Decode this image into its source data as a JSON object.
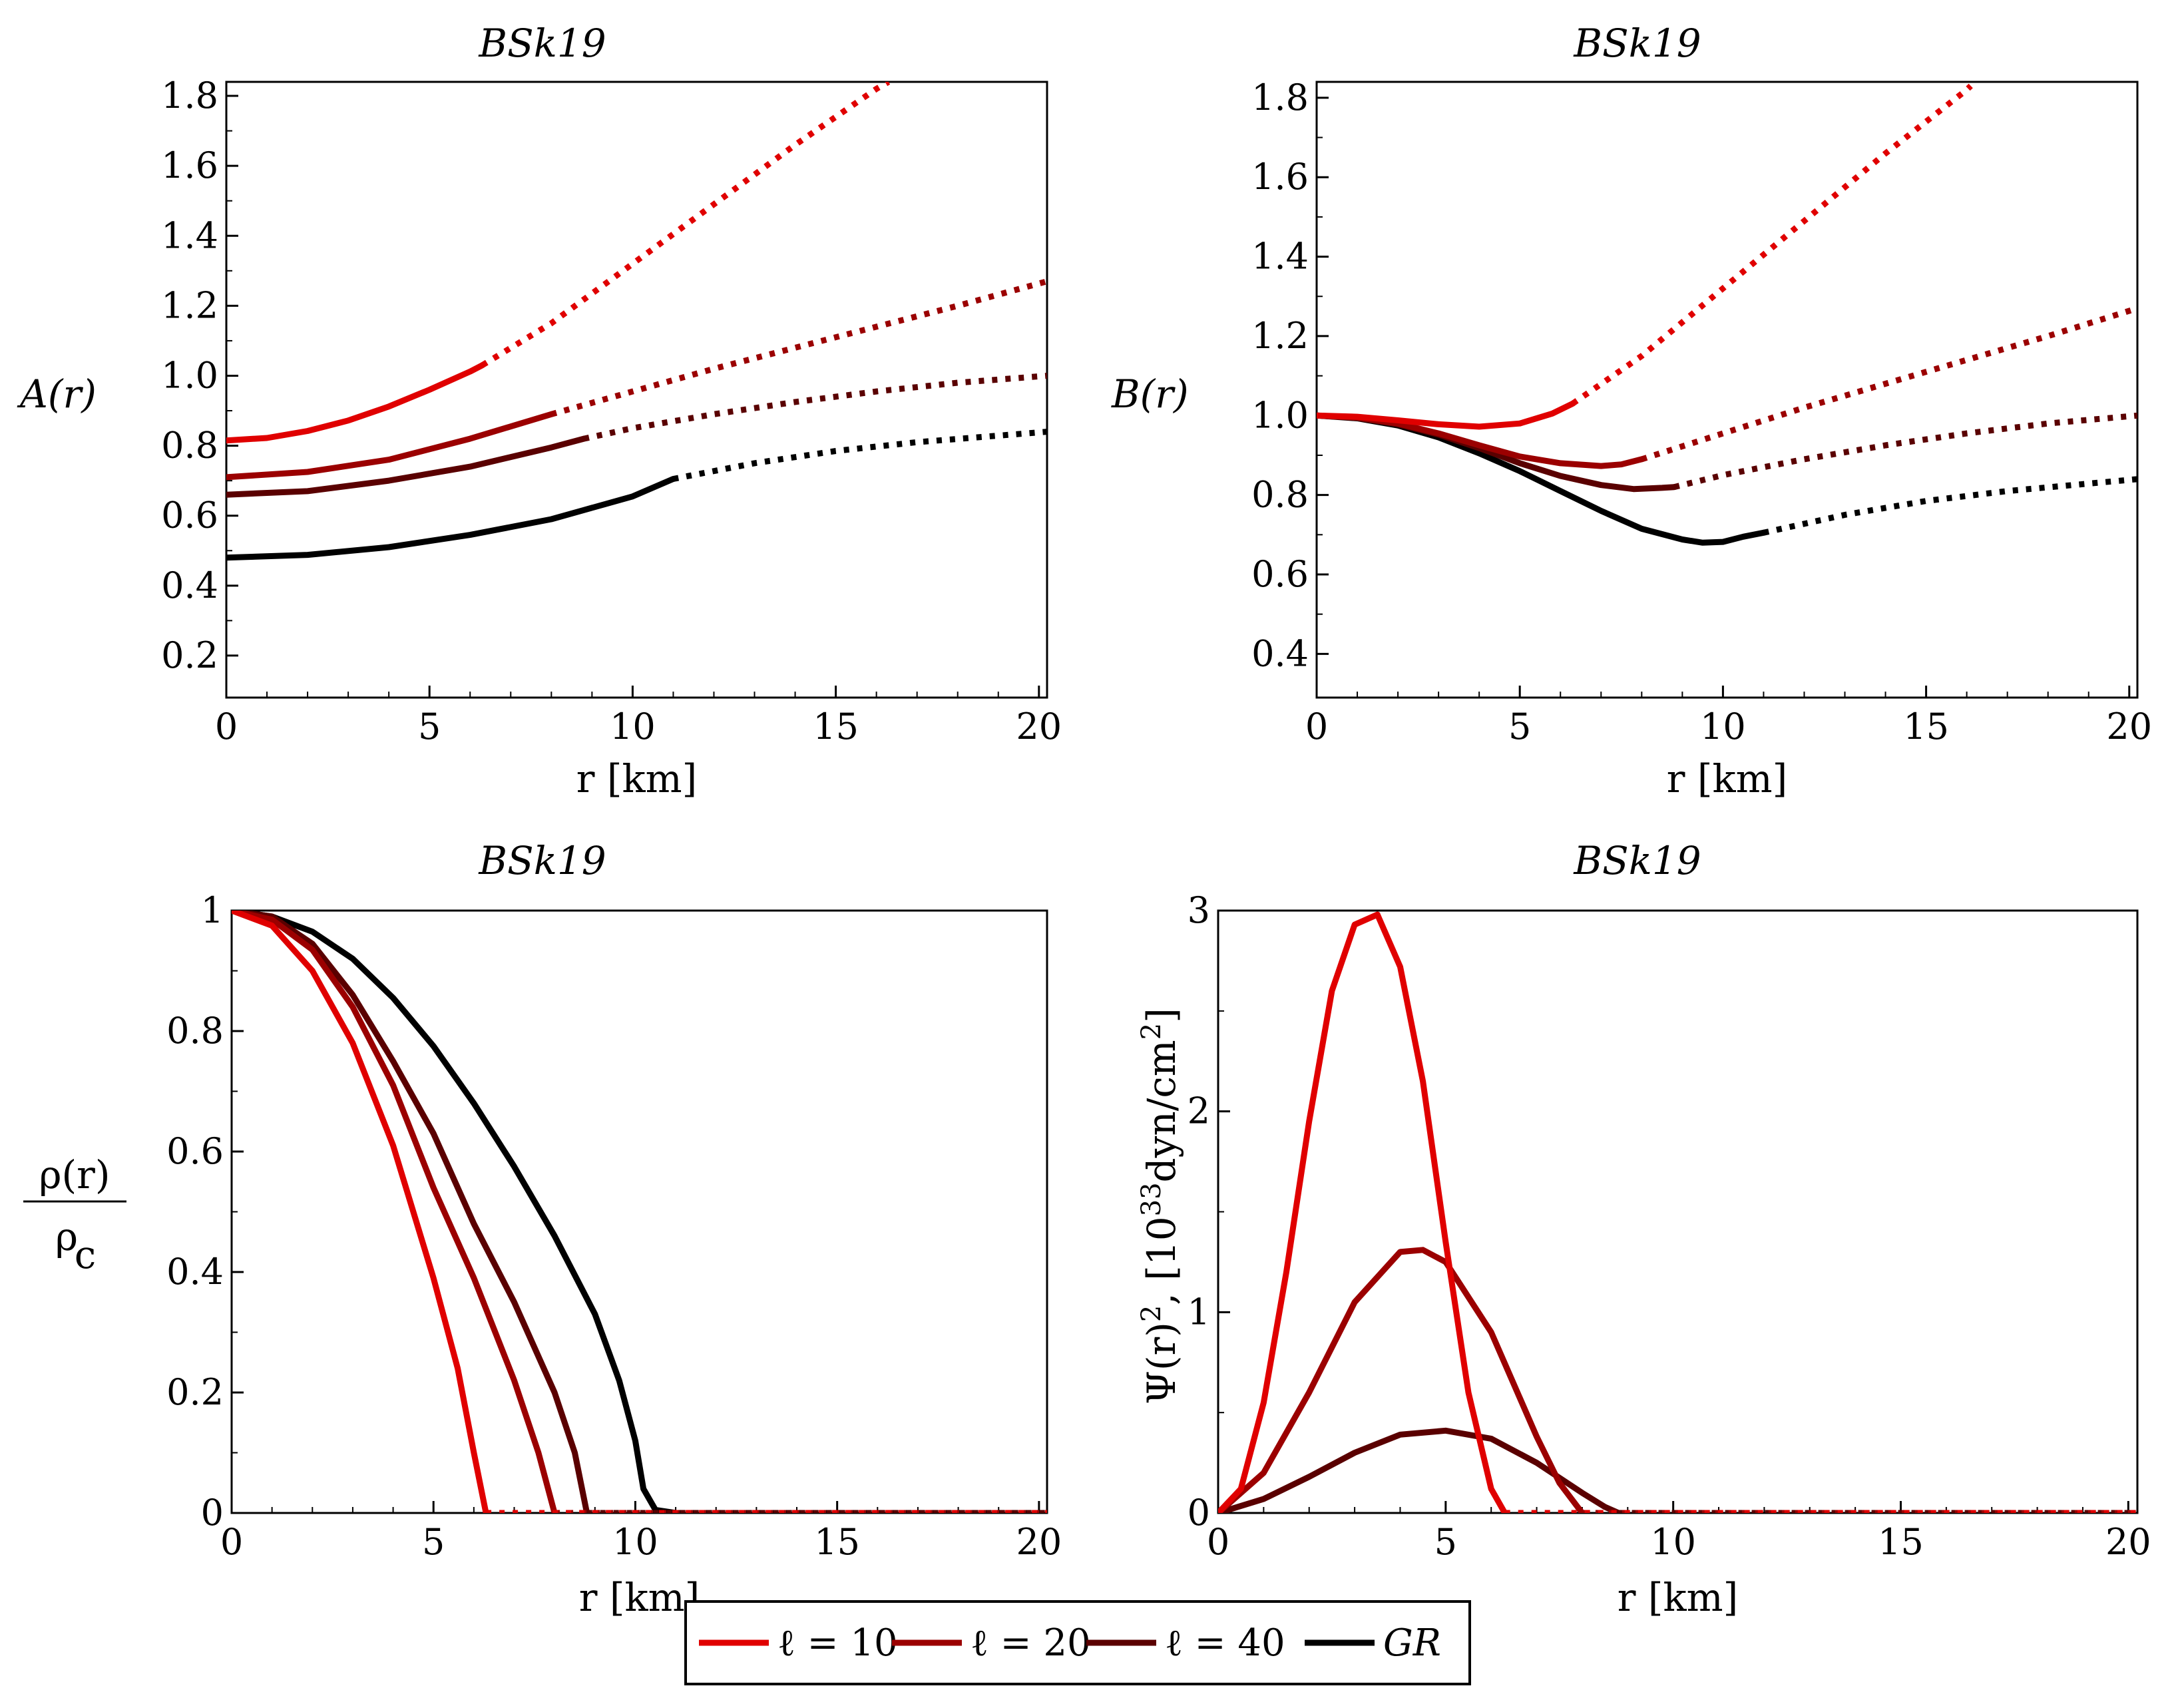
{
  "legend": [
    {
      "label": "ℓ = 10",
      "color": "#e00000"
    },
    {
      "label": "ℓ = 20",
      "color": "#9b0000"
    },
    {
      "label": "ℓ = 40",
      "color": "#5a0000"
    },
    {
      "label": "GR",
      "color": "#000000"
    }
  ],
  "chart_data": [
    {
      "type": "line",
      "title": "BSk19",
      "xlabel": "r [km]",
      "ylabel": "A(r)",
      "xlim": [
        0,
        20.2
      ],
      "ylim": [
        0.08,
        1.84
      ],
      "xticks": [
        0,
        5,
        10,
        15,
        20
      ],
      "yticks": [
        0.2,
        0.4,
        0.6,
        0.8,
        1.0,
        1.2,
        1.4,
        1.6,
        1.8
      ],
      "ytick_labels": [
        "0.2",
        "0.4",
        "0.6",
        "0.8",
        "1.0",
        "1.2",
        "1.4",
        "1.6",
        "1.8"
      ],
      "series": [
        {
          "name": "ℓ = 10",
          "solid": {
            "x": [
              0,
              1,
              2,
              3,
              4,
              5,
              6,
              6.3
            ],
            "y": [
              0.815,
              0.822,
              0.842,
              0.872,
              0.912,
              0.96,
              1.012,
              1.03
            ]
          },
          "dotted": {
            "x": [
              6.3,
              8,
              10,
              12,
              14,
              16,
              16.3
            ],
            "y": [
              1.03,
              1.15,
              1.32,
              1.49,
              1.66,
              1.82,
              1.84
            ]
          }
        },
        {
          "name": "ℓ = 20",
          "solid": {
            "x": [
              0,
              2,
              4,
              6,
              8
            ],
            "y": [
              0.71,
              0.725,
              0.76,
              0.82,
              0.89
            ]
          },
          "dotted": {
            "x": [
              8,
              10,
              12,
              14,
              16,
              18,
              20.2
            ],
            "y": [
              0.89,
              0.955,
              1.02,
              1.08,
              1.14,
              1.2,
              1.27
            ]
          }
        },
        {
          "name": "ℓ = 40",
          "solid": {
            "x": [
              0,
              2,
              4,
              6,
              8,
              8.8
            ],
            "y": [
              0.66,
              0.67,
              0.7,
              0.74,
              0.795,
              0.82
            ]
          },
          "dotted": {
            "x": [
              8.8,
              10,
              12,
              14,
              16,
              18,
              20.2
            ],
            "y": [
              0.82,
              0.85,
              0.89,
              0.925,
              0.955,
              0.98,
              1.0
            ]
          }
        },
        {
          "name": "GR",
          "solid": {
            "x": [
              0,
              2,
              4,
              6,
              8,
              10,
              11
            ],
            "y": [
              0.48,
              0.488,
              0.51,
              0.545,
              0.59,
              0.655,
              0.705
            ]
          },
          "dotted": {
            "x": [
              11,
              13,
              15,
              17,
              20.2
            ],
            "y": [
              0.705,
              0.75,
              0.785,
              0.81,
              0.84
            ]
          }
        }
      ]
    },
    {
      "type": "line",
      "title": "BSk19",
      "xlabel": "r [km]",
      "ylabel": "B(r)",
      "xlim": [
        0,
        20.2
      ],
      "ylim": [
        0.29,
        1.84
      ],
      "xticks": [
        0,
        5,
        10,
        15,
        20
      ],
      "yticks": [
        0.4,
        0.6,
        0.8,
        1.0,
        1.2,
        1.4,
        1.6,
        1.8
      ],
      "ytick_labels": [
        "0.4",
        "0.6",
        "0.8",
        "1.0",
        "1.2",
        "1.4",
        "1.6",
        "1.8"
      ],
      "series": [
        {
          "name": "ℓ = 10",
          "solid": {
            "x": [
              0,
              1,
              2,
              3,
              4,
              5,
              5.8,
              6.3
            ],
            "y": [
              1.0,
              0.997,
              0.988,
              0.978,
              0.972,
              0.98,
              1.005,
              1.03
            ]
          },
          "dotted": {
            "x": [
              6.3,
              8,
              10,
              12,
              14,
              16,
              16.1
            ],
            "y": [
              1.03,
              1.15,
              1.32,
              1.49,
              1.66,
              1.82,
              1.83
            ]
          }
        },
        {
          "name": "ℓ = 20",
          "solid": {
            "x": [
              0,
              1,
              2,
              3,
              4,
              5,
              6,
              7,
              7.5,
              8
            ],
            "y": [
              1.0,
              0.995,
              0.98,
              0.955,
              0.925,
              0.897,
              0.88,
              0.873,
              0.877,
              0.89
            ]
          },
          "dotted": {
            "x": [
              8,
              10,
              12,
              14,
              16,
              18,
              20.2
            ],
            "y": [
              0.89,
              0.955,
              1.02,
              1.08,
              1.14,
              1.2,
              1.27
            ]
          }
        },
        {
          "name": "ℓ = 40",
          "solid": {
            "x": [
              0,
              1,
              2,
              3,
              4,
              5,
              6,
              7,
              7.8,
              8.5,
              8.8
            ],
            "y": [
              1.0,
              0.994,
              0.978,
              0.952,
              0.918,
              0.88,
              0.848,
              0.825,
              0.815,
              0.818,
              0.82
            ]
          },
          "dotted": {
            "x": [
              8.8,
              10,
              12,
              14,
              16,
              18,
              20.2
            ],
            "y": [
              0.82,
              0.85,
              0.89,
              0.925,
              0.955,
              0.98,
              1.0
            ]
          }
        },
        {
          "name": "GR",
          "solid": {
            "x": [
              0,
              1,
              2,
              3,
              4,
              5,
              6,
              7,
              8,
              9,
              9.5,
              10,
              10.5,
              11
            ],
            "y": [
              1.0,
              0.993,
              0.975,
              0.945,
              0.905,
              0.86,
              0.81,
              0.76,
              0.715,
              0.688,
              0.68,
              0.682,
              0.695,
              0.705
            ]
          },
          "dotted": {
            "x": [
              11,
              13,
              15,
              17,
              20.2
            ],
            "y": [
              0.705,
              0.75,
              0.785,
              0.81,
              0.84
            ]
          }
        }
      ]
    },
    {
      "type": "line",
      "title": "BSk19",
      "xlabel": "r [km]",
      "ylabel": "ρ(r) / ρc",
      "ylabel_num": "ρ(r)",
      "ylabel_den": "ρ",
      "ylabel_den_sub": "c",
      "xlim": [
        0,
        20.2
      ],
      "ylim": [
        0,
        1.0
      ],
      "xticks": [
        0,
        5,
        10,
        15,
        20
      ],
      "yticks": [
        0,
        0.2,
        0.4,
        0.6,
        0.8,
        1.0
      ],
      "ytick_labels": [
        "0",
        "0.2",
        "0.4",
        "0.6",
        "0.8",
        "1"
      ],
      "series": [
        {
          "name": "ℓ = 10",
          "solid": {
            "x": [
              0,
              1,
              2,
              3,
              4,
              5,
              5.6,
              6.0,
              6.3
            ],
            "y": [
              1.0,
              0.975,
              0.9,
              0.78,
              0.61,
              0.39,
              0.24,
              0.1,
              0.0
            ]
          },
          "dotted": {
            "x": [
              6.3,
              20.2
            ],
            "y": [
              0.0,
              0.0
            ]
          }
        },
        {
          "name": "ℓ = 20",
          "solid": {
            "x": [
              0,
              1,
              2,
              3,
              4,
              5,
              6,
              7,
              7.6,
              8.0
            ],
            "y": [
              1.0,
              0.985,
              0.935,
              0.84,
              0.71,
              0.54,
              0.39,
              0.22,
              0.1,
              0.0
            ]
          },
          "dotted": {
            "x": [
              8.0,
              20.2
            ],
            "y": [
              0.0,
              0.0
            ]
          }
        },
        {
          "name": "ℓ = 40",
          "solid": {
            "x": [
              0,
              1,
              2,
              3,
              4,
              5,
              6,
              7,
              8,
              8.5,
              8.8
            ],
            "y": [
              1.0,
              0.99,
              0.945,
              0.86,
              0.75,
              0.63,
              0.48,
              0.35,
              0.2,
              0.1,
              0.0
            ]
          },
          "dotted": {
            "x": [
              8.8,
              20.2
            ],
            "y": [
              0.0,
              0.0
            ]
          }
        },
        {
          "name": "GR",
          "solid": {
            "x": [
              0,
              1,
              2,
              3,
              4,
              5,
              6,
              7,
              8,
              9,
              9.6,
              10,
              10.2,
              10.5,
              11
            ],
            "y": [
              1.0,
              0.99,
              0.965,
              0.92,
              0.855,
              0.775,
              0.68,
              0.575,
              0.46,
              0.33,
              0.22,
              0.12,
              0.04,
              0.005,
              0.0
            ]
          },
          "dotted": {
            "x": [
              11,
              20.2
            ],
            "y": [
              0.0,
              0.0
            ]
          }
        }
      ]
    },
    {
      "type": "line",
      "title": "BSk19",
      "xlabel": "r [km]",
      "ylabel": "Ψ(r)², [10³³dyn/cm²]",
      "ylabel_main": "Ψ(r)",
      "ylabel_unit_a": ", [10",
      "ylabel_unit_exp": "33",
      "ylabel_unit_b": "dyn/cm",
      "ylabel_unit_b_exp": "2",
      "ylabel_unit_c": "]",
      "ylabel_sq": "2",
      "xlim": [
        0,
        20.2
      ],
      "ylim": [
        0,
        3.0
      ],
      "xticks": [
        0,
        5,
        10,
        15,
        20
      ],
      "yticks": [
        0,
        1,
        2,
        3
      ],
      "ytick_labels": [
        "0",
        "1",
        "2",
        "3"
      ],
      "series": [
        {
          "name": "ℓ = 10",
          "solid": {
            "x": [
              0,
              0.5,
              1,
              1.5,
              2,
              2.5,
              3,
              3.5,
              4,
              4.5,
              5,
              5.5,
              6,
              6.3
            ],
            "y": [
              0.0,
              0.12,
              0.55,
              1.2,
              1.95,
              2.6,
              2.93,
              2.98,
              2.72,
              2.15,
              1.35,
              0.6,
              0.12,
              0.0
            ]
          },
          "dotted": {
            "x": [
              6.3,
              20.2
            ],
            "y": [
              0.0,
              0.0
            ]
          }
        },
        {
          "name": "ℓ = 20",
          "solid": {
            "x": [
              0,
              1,
              2,
              3,
              4,
              4.5,
              5,
              6,
              7,
              7.5,
              8
            ],
            "y": [
              0.0,
              0.2,
              0.6,
              1.05,
              1.3,
              1.31,
              1.25,
              0.9,
              0.38,
              0.15,
              0.0
            ]
          },
          "dotted": {
            "x": [
              8,
              20.2
            ],
            "y": [
              0.0,
              0.0
            ]
          }
        },
        {
          "name": "ℓ = 40",
          "solid": {
            "x": [
              0,
              1,
              2,
              3,
              4,
              5,
              6,
              7,
              8,
              8.5,
              8.8
            ],
            "y": [
              0.0,
              0.07,
              0.18,
              0.3,
              0.39,
              0.41,
              0.37,
              0.25,
              0.1,
              0.03,
              0.0
            ]
          },
          "dotted": {
            "x": [
              8.8,
              20.2
            ],
            "y": [
              0.0,
              0.0
            ]
          }
        }
      ]
    }
  ]
}
